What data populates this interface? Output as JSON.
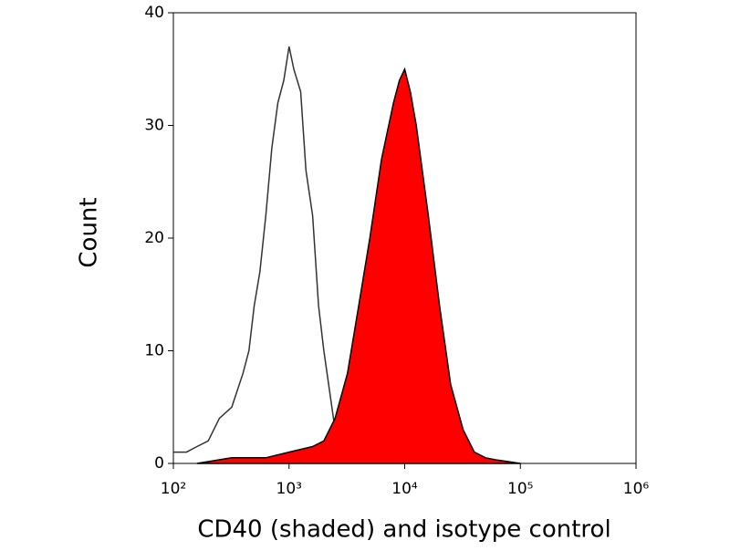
{
  "chart_data": {
    "type": "histogram-overlay",
    "x_label": "CD40 (shaded) and isotype control",
    "y_label": "Count",
    "xscale": "log",
    "xlim": [
      100,
      1000000
    ],
    "ylim": [
      0,
      40
    ],
    "xticks": [
      {
        "value": 100,
        "label": "10²"
      },
      {
        "value": 1000,
        "label": "10³"
      },
      {
        "value": 10000,
        "label": "10⁴"
      },
      {
        "value": 100000,
        "label": "10⁵"
      },
      {
        "value": 1000000,
        "label": "10⁶"
      }
    ],
    "yticks": [
      0,
      10,
      20,
      30,
      40
    ],
    "series": [
      {
        "color": "#333333",
        "fill": false,
        "x": [
          100,
          130,
          160,
          200,
          250,
          320,
          400,
          450,
          500,
          560,
          630,
          710,
          800,
          900,
          1000,
          1100,
          1260,
          1400,
          1600,
          1800,
          2000,
          2500,
          3200,
          4000
        ],
        "values": [
          1,
          1,
          1.5,
          2,
          4,
          5,
          8,
          10,
          14,
          17,
          22,
          28,
          32,
          34,
          37,
          35,
          33,
          26,
          22,
          14,
          10,
          3,
          0.5,
          0
        ]
      },
      {
        "color": "#ff0000",
        "fill": true,
        "x": [
          160,
          320,
          630,
          1000,
          1600,
          2000,
          2500,
          3200,
          4000,
          5000,
          6300,
          8000,
          9000,
          10000,
          11200,
          12600,
          16000,
          20000,
          25000,
          32000,
          40000,
          50000,
          63000,
          100000
        ],
        "values": [
          0,
          0.5,
          0.5,
          1,
          1.5,
          2,
          4,
          8,
          14,
          20,
          27,
          32,
          34,
          35,
          33,
          30,
          22,
          14,
          7,
          3,
          1,
          0.5,
          0.3,
          0
        ]
      }
    ]
  }
}
